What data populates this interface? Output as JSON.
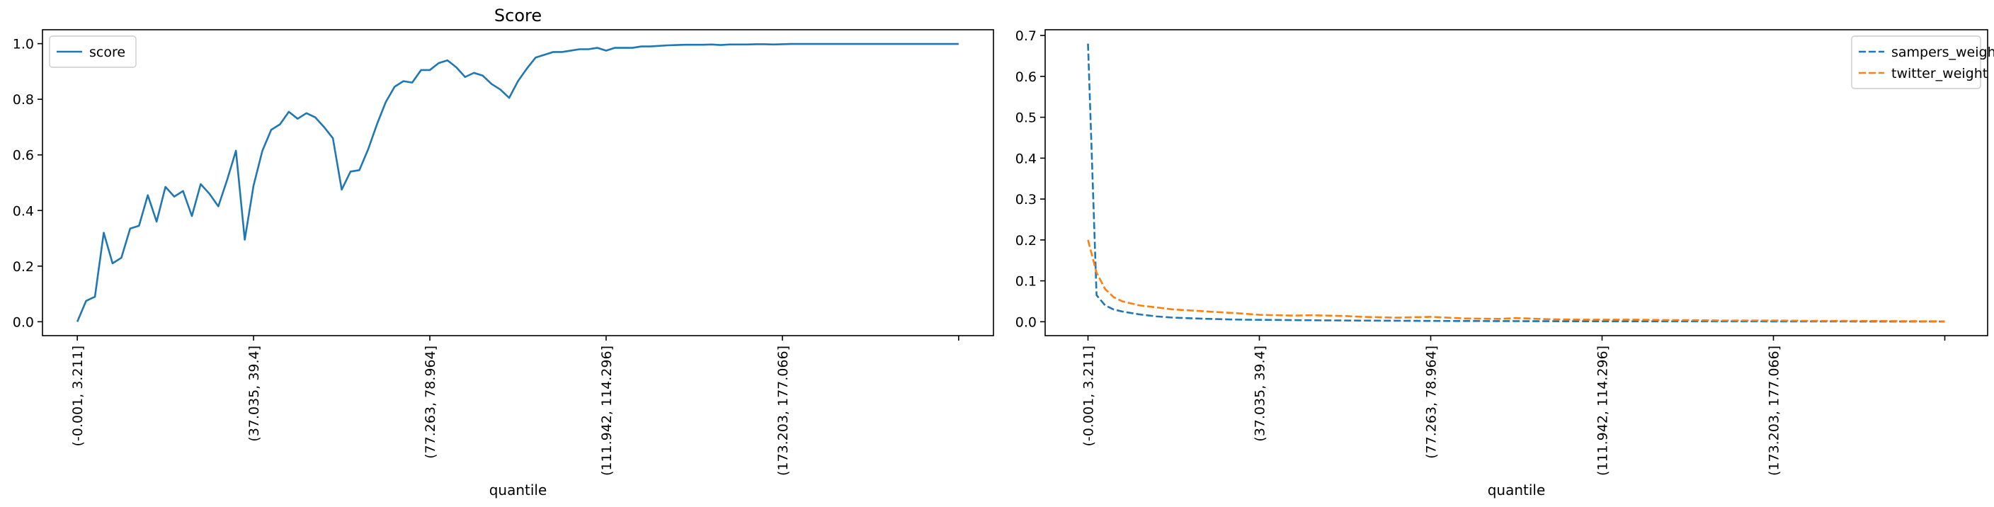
{
  "chart_data": [
    {
      "type": "line",
      "title": "Score",
      "xlabel": "quantile",
      "ylabel": "",
      "xlim": [
        -3.95,
        103.95
      ],
      "ylim": [
        -0.05,
        1.05
      ],
      "xticks": [
        0,
        20,
        40,
        60,
        80,
        100
      ],
      "xtick_labels": [
        "(-0.001, 3.211]",
        "(37.035, 39.4]",
        "(77.263, 78.964]",
        "(111.942, 114.296]",
        "(173.203, 177.066]",
        ""
      ],
      "yticks": [
        0,
        0.2,
        0.4,
        0.6,
        0.8,
        1.0
      ],
      "ytick_labels": [
        "0.0",
        "0.2",
        "0.4",
        "0.6",
        "0.8",
        "1.0"
      ],
      "legend_position": "upper-left",
      "series": [
        {
          "name": "score",
          "color": "#1f77b4",
          "dash": "solid",
          "x": [
            0,
            1,
            2,
            3,
            4,
            5,
            6,
            7,
            8,
            9,
            10,
            11,
            12,
            13,
            14,
            15,
            16,
            17,
            18,
            19,
            20,
            21,
            22,
            23,
            24,
            25,
            26,
            27,
            28,
            29,
            30,
            31,
            32,
            33,
            34,
            35,
            36,
            37,
            38,
            39,
            40,
            41,
            42,
            43,
            44,
            45,
            46,
            47,
            48,
            49,
            50,
            51,
            52,
            53,
            54,
            55,
            56,
            57,
            58,
            59,
            60,
            61,
            62,
            63,
            64,
            65,
            66,
            67,
            68,
            69,
            70,
            71,
            72,
            73,
            74,
            75,
            76,
            77,
            78,
            79,
            80,
            81,
            82,
            83,
            84,
            85,
            86,
            87,
            88,
            89,
            90,
            91,
            92,
            93,
            94,
            95,
            96,
            97,
            98,
            99,
            100
          ],
          "values": [
            0.0,
            0.075,
            0.09,
            0.32,
            0.21,
            0.23,
            0.335,
            0.345,
            0.455,
            0.36,
            0.485,
            0.45,
            0.47,
            0.38,
            0.495,
            0.46,
            0.415,
            0.51,
            0.615,
            0.295,
            0.49,
            0.615,
            0.69,
            0.71,
            0.755,
            0.73,
            0.75,
            0.735,
            0.7,
            0.66,
            0.475,
            0.54,
            0.545,
            0.62,
            0.71,
            0.79,
            0.845,
            0.865,
            0.86,
            0.905,
            0.905,
            0.93,
            0.94,
            0.915,
            0.88,
            0.895,
            0.885,
            0.855,
            0.835,
            0.805,
            0.865,
            0.91,
            0.95,
            0.96,
            0.97,
            0.97,
            0.975,
            0.98,
            0.98,
            0.985,
            0.975,
            0.985,
            0.985,
            0.985,
            0.99,
            0.99,
            0.992,
            0.994,
            0.995,
            0.996,
            0.996,
            0.996,
            0.997,
            0.995,
            0.997,
            0.997,
            0.997,
            0.998,
            0.998,
            0.997,
            0.998,
            0.999,
            0.999,
            0.999,
            0.999,
            0.999,
            0.999,
            0.999,
            0.999,
            0.999,
            0.999,
            0.999,
            0.999,
            0.999,
            0.999,
            0.999,
            0.999,
            0.999,
            0.999,
            0.999,
            0.999
          ]
        }
      ]
    },
    {
      "type": "line",
      "title": "",
      "xlabel": "quantile",
      "ylabel": "",
      "xlim": [
        -5,
        105
      ],
      "ylim": [
        -0.034,
        0.714
      ],
      "xticks": [
        0,
        20,
        40,
        60,
        80,
        100
      ],
      "xtick_labels": [
        "(-0.001, 3.211]",
        "(37.035, 39.4]",
        "(77.263, 78.964]",
        "(111.942, 114.296]",
        "(173.203, 177.066]",
        ""
      ],
      "yticks": [
        0,
        0.1,
        0.2,
        0.3,
        0.4,
        0.5,
        0.6,
        0.7
      ],
      "ytick_labels": [
        "0.0",
        "0.1",
        "0.2",
        "0.3",
        "0.4",
        "0.5",
        "0.6",
        "0.7"
      ],
      "legend_position": "upper-right",
      "series": [
        {
          "name": "sampers_weight",
          "color": "#1f77b4",
          "dash": "dashed",
          "x": [
            0,
            1,
            2,
            3,
            4,
            6,
            8,
            10,
            14,
            18,
            24,
            30,
            40,
            50,
            60,
            70,
            80,
            90,
            100
          ],
          "values": [
            0.68,
            0.065,
            0.04,
            0.03,
            0.025,
            0.018,
            0.013,
            0.01,
            0.007,
            0.005,
            0.004,
            0.003,
            0.002,
            0.0015,
            0.001,
            0.001,
            0.0008,
            0.0006,
            0.0005
          ]
        },
        {
          "name": "twitter_weight",
          "color": "#ff7f0e",
          "dash": "dashed",
          "x": [
            0,
            1,
            2,
            3,
            4,
            6,
            8,
            10,
            14,
            18,
            20,
            22,
            24,
            26,
            30,
            32,
            34,
            36,
            38,
            40,
            44,
            48,
            50,
            54,
            58,
            60,
            64,
            68,
            70,
            74,
            80,
            85,
            90,
            95,
            100
          ],
          "values": [
            0.2,
            0.12,
            0.08,
            0.06,
            0.05,
            0.04,
            0.035,
            0.03,
            0.025,
            0.02,
            0.017,
            0.016,
            0.015,
            0.016,
            0.014,
            0.012,
            0.011,
            0.01,
            0.011,
            0.012,
            0.008,
            0.007,
            0.009,
            0.006,
            0.005,
            0.005,
            0.005,
            0.004,
            0.004,
            0.003,
            0.003,
            0.002,
            0.002,
            0.0015,
            0.001
          ]
        }
      ]
    }
  ]
}
